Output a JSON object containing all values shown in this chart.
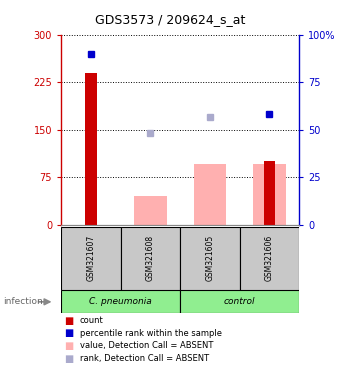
{
  "title": "GDS3573 / 209624_s_at",
  "samples": [
    "GSM321607",
    "GSM321608",
    "GSM321605",
    "GSM321606"
  ],
  "counts": [
    240,
    0,
    0,
    100
  ],
  "pink_bars": [
    null,
    45,
    95,
    95
  ],
  "blue_squares_solid": [
    true,
    false,
    false,
    true
  ],
  "blue_squares_value": [
    270,
    145,
    170,
    175
  ],
  "ylim_left": [
    0,
    300
  ],
  "ylim_right": [
    0,
    100
  ],
  "yticks_left": [
    0,
    75,
    150,
    225,
    300
  ],
  "ytick_right_labels": [
    "0",
    "25",
    "50",
    "75",
    "100%"
  ],
  "yticks_right": [
    0,
    25,
    50,
    75,
    100
  ],
  "color_red": "#cc0000",
  "color_pink": "#ffb0b0",
  "color_blue_solid": "#0000cc",
  "color_blue_light": "#aaaacc",
  "color_bar_bg": "#c8c8c8",
  "color_group_bg": "#90ee90",
  "infection_label": "infection",
  "group_ranges": [
    [
      0,
      2,
      "C. pneumonia"
    ],
    [
      2,
      4,
      "control"
    ]
  ],
  "legend_labels": [
    "count",
    "percentile rank within the sample",
    "value, Detection Call = ABSENT",
    "rank, Detection Call = ABSENT"
  ]
}
